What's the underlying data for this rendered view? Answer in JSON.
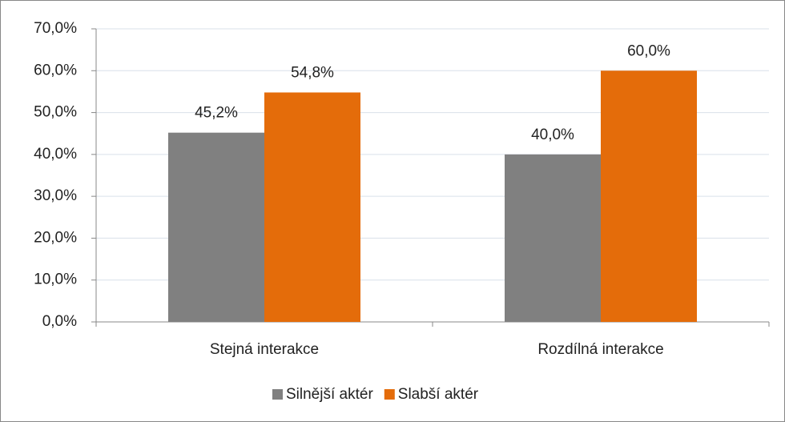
{
  "chart_data": {
    "type": "bar",
    "categories": [
      "Stejná interakce",
      "Rozdílná interakce"
    ],
    "series": [
      {
        "name": "Silnější aktér",
        "color": "#808080",
        "values": [
          45.2,
          40.0
        ],
        "value_labels": [
          "45,2%",
          "40,0%"
        ]
      },
      {
        "name": "Slabší aktér",
        "color": "#e46c0a",
        "values": [
          54.8,
          60.0
        ],
        "value_labels": [
          "54,8%",
          "60,0%"
        ]
      }
    ],
    "ylim": [
      0,
      70
    ],
    "yticks": [
      {
        "value": 0,
        "label": "0,0%"
      },
      {
        "value": 10,
        "label": "10,0%"
      },
      {
        "value": 20,
        "label": "20,0%"
      },
      {
        "value": 30,
        "label": "30,0%"
      },
      {
        "value": 40,
        "label": "40,0%"
      },
      {
        "value": 50,
        "label": "50,0%"
      },
      {
        "value": 60,
        "label": "60,0%"
      },
      {
        "value": 70,
        "label": "70,0%"
      }
    ],
    "grid": true,
    "legend": "bottom"
  }
}
